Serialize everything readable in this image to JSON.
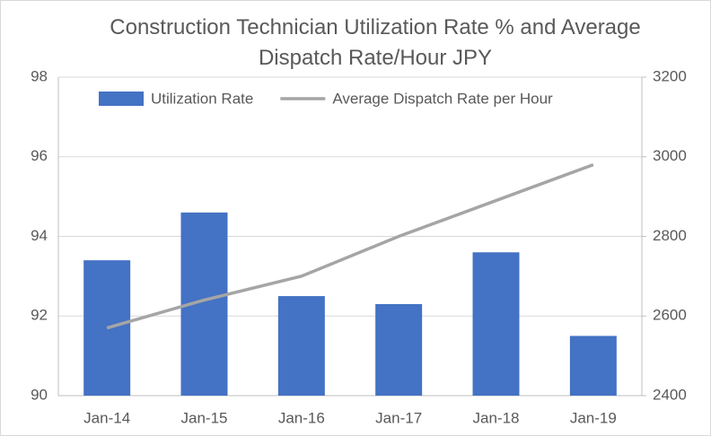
{
  "chart_data": {
    "type": "bar",
    "title": "Construction Technician Utilization Rate % and Average Dispatch Rate/Hour JPY",
    "categories": [
      "Jan-14",
      "Jan-15",
      "Jan-16",
      "Jan-17",
      "Jan-18",
      "Jan-19"
    ],
    "series": [
      {
        "name": "Utilization Rate",
        "type": "bar",
        "color": "#4472c4",
        "values": [
          93.4,
          94.6,
          92.5,
          92.3,
          93.6,
          91.5
        ]
      },
      {
        "name": "Average Dispatch Rate per Hour",
        "type": "line",
        "axis": "y2",
        "color": "#a5a5a5",
        "values": [
          2570,
          2640,
          2700,
          2800,
          2890,
          2980
        ]
      }
    ],
    "ylim": [
      90,
      98
    ],
    "yticks": [
      90,
      92,
      94,
      96,
      98
    ],
    "y2lim": [
      2400,
      3200
    ],
    "y2ticks": [
      2400,
      2600,
      2800,
      3000,
      3200
    ],
    "grid": true,
    "legend": "top"
  }
}
